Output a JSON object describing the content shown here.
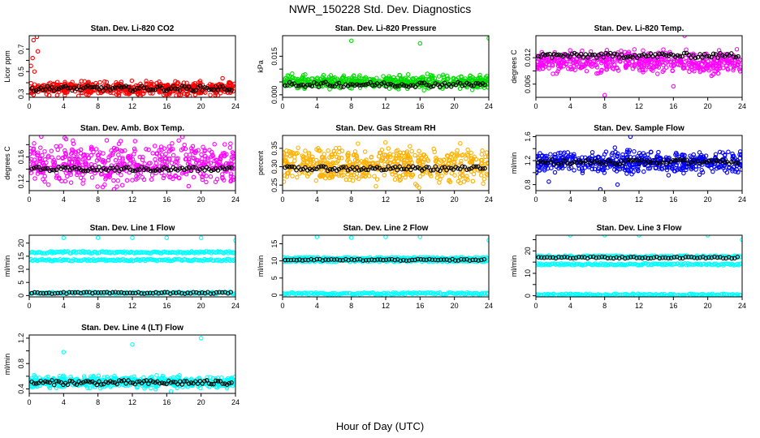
{
  "title": "NWR_150228  Std. Dev. Diagnostics",
  "xlabel": "Hour of Day (UTC)",
  "colors": {
    "red": "#ff0000",
    "green": "#00dd00",
    "magenta": "#ff00ff",
    "orange": "#ffb000",
    "blue": "#0000ff",
    "cyan": "#00ffff",
    "black": "#000000"
  },
  "chart_data": [
    {
      "type": "scatter",
      "title": "Stan. Dev. Li-820 CO2",
      "ylabel": "Licor ppm",
      "xlim": [
        0,
        24
      ],
      "ylim": [
        0.27,
        0.82
      ],
      "xticks": [
        0,
        4,
        8,
        12,
        16,
        20,
        24
      ],
      "yticks": [
        0.3,
        0.4,
        0.5,
        0.6,
        0.7
      ],
      "ytick_labels": [
        "0.3",
        "",
        "0.5",
        "",
        "0.7"
      ],
      "color": "red",
      "band": [
        0.28,
        0.42
      ],
      "black_mean": 0.35,
      "outliers": [
        [
          0.9,
          0.81
        ],
        [
          0.5,
          0.78
        ],
        [
          1.0,
          0.68
        ],
        [
          0.4,
          0.62
        ],
        [
          0.2,
          0.55
        ],
        [
          0.6,
          0.5
        ],
        [
          22.5,
          0.44
        ]
      ]
    },
    {
      "type": "scatter",
      "title": "Stan. Dev. Li-820 Pressure",
      "ylabel": "kPa",
      "xlim": [
        0,
        24
      ],
      "ylim": [
        -0.001,
        0.023
      ],
      "xticks": [
        0,
        4,
        8,
        12,
        16,
        20,
        24
      ],
      "yticks": [
        0,
        0.005,
        0.01,
        0.015
      ],
      "ytick_labels": [
        "0.000",
        "",
        "",
        "0.015"
      ],
      "color": "green",
      "band": [
        0.002,
        0.008
      ],
      "black_mean": 0.004,
      "outliers": [
        [
          8.0,
          0.021
        ],
        [
          16.0,
          0.02
        ],
        [
          24.0,
          0.022
        ]
      ]
    },
    {
      "type": "scatter",
      "title": "Stan. Dev. Li-820 Temp.",
      "ylabel": "degrees C",
      "xlim": [
        0,
        24
      ],
      "ylim": [
        0.003,
        0.017
      ],
      "xticks": [
        0,
        4,
        8,
        12,
        16,
        20,
        24
      ],
      "yticks": [
        0.006,
        0.009,
        0.012
      ],
      "ytick_labels": [
        "0.006",
        "",
        "0.012"
      ],
      "color": "magenta",
      "band": [
        0.008,
        0.014
      ],
      "black_mean": 0.0125,
      "outliers": [
        [
          8.0,
          0.0035
        ],
        [
          17.3,
          0.017
        ],
        [
          16.0,
          0.0055
        ]
      ]
    },
    {
      "type": "scatter",
      "title": "Stan. Dev. Amb. Box Temp.",
      "ylabel": "degrees C",
      "xlim": [
        0,
        24
      ],
      "ylim": [
        0.105,
        0.195
      ],
      "xticks": [
        0,
        4,
        8,
        12,
        16,
        20,
        24
      ],
      "yticks": [
        0.12,
        0.14,
        0.16,
        0.18
      ],
      "ytick_labels": [
        "0.12",
        "",
        "0.16",
        ""
      ],
      "color": "magenta",
      "band": [
        0.11,
        0.19
      ],
      "black_mean": 0.14,
      "outliers": []
    },
    {
      "type": "scatter",
      "title": "Stan. Dev. Gas Stream RH",
      "ylabel": "percent",
      "xlim": [
        0,
        24
      ],
      "ylim": [
        0.235,
        0.385
      ],
      "xticks": [
        0,
        4,
        8,
        12,
        16,
        20,
        24
      ],
      "yticks": [
        0.25,
        0.3,
        0.35
      ],
      "ytick_labels": [
        "0.25",
        "0.30",
        "0.35"
      ],
      "color": "orange",
      "band": [
        0.245,
        0.365
      ],
      "black_mean": 0.295,
      "outliers": []
    },
    {
      "type": "scatter",
      "title": "Stan. Dev. Sample Flow",
      "ylabel": "ml/min",
      "xlim": [
        0,
        24
      ],
      "ylim": [
        0.7,
        1.62
      ],
      "xticks": [
        0,
        4,
        8,
        12,
        16,
        20,
        24
      ],
      "yticks": [
        0.8,
        1.0,
        1.2,
        1.4,
        1.6
      ],
      "ytick_labels": [
        "0.8",
        "",
        "1.2",
        "",
        "1.6"
      ],
      "color": "blue",
      "band": [
        0.95,
        1.4
      ],
      "black_mean": 1.18,
      "outliers": [
        [
          7.5,
          0.72
        ],
        [
          11.0,
          1.6
        ],
        [
          9.5,
          0.8
        ],
        [
          1.5,
          0.85
        ]
      ]
    },
    {
      "type": "scatter",
      "title": "Stan. Dev. Line 1 Flow",
      "ylabel": "ml/min",
      "xlim": [
        0,
        24
      ],
      "ylim": [
        -0.5,
        23
      ],
      "xticks": [
        0,
        4,
        8,
        12,
        16,
        20,
        24
      ],
      "yticks": [
        0,
        5,
        10,
        15,
        20
      ],
      "ytick_labels": [
        "0",
        "5",
        "10",
        "15",
        "20"
      ],
      "color": "cyan",
      "lines": [
        16.5,
        13.5,
        1.0
      ],
      "black_mean": 1.0,
      "outliers": [
        [
          4.0,
          22
        ],
        [
          8.0,
          22
        ],
        [
          12.0,
          22
        ],
        [
          16.0,
          22
        ],
        [
          24.0,
          21
        ],
        [
          20.0,
          22
        ]
      ]
    },
    {
      "type": "scatter",
      "title": "Stan. Dev. Line 2 Flow",
      "ylabel": "ml/min",
      "xlim": [
        0,
        24
      ],
      "ylim": [
        -0.5,
        17.5
      ],
      "xticks": [
        0,
        4,
        8,
        12,
        16,
        20,
        24
      ],
      "yticks": [
        0,
        5,
        10,
        15
      ],
      "ytick_labels": [
        "0",
        "5",
        "10",
        "15"
      ],
      "color": "cyan",
      "lines": [
        10.8,
        10.0,
        0.5
      ],
      "black_mean": 10.3,
      "outliers": [
        [
          4.0,
          17
        ],
        [
          8.0,
          16.8
        ],
        [
          12.0,
          17
        ],
        [
          16.0,
          17
        ],
        [
          24.0,
          16
        ]
      ]
    },
    {
      "type": "scatter",
      "title": "Stan. Dev. Line 3 Flow",
      "ylabel": "ml/min",
      "xlim": [
        0,
        24
      ],
      "ylim": [
        -0.5,
        27
      ],
      "xticks": [
        0,
        4,
        8,
        12,
        16,
        20,
        24
      ],
      "yticks": [
        0,
        5,
        10,
        15,
        20,
        25
      ],
      "ytick_labels": [
        "0",
        "",
        "10",
        "",
        "20",
        ""
      ],
      "color": "cyan",
      "lines": [
        17.5,
        14.0,
        0.5
      ],
      "black_mean": 17.0,
      "outliers": [
        [
          4.0,
          27
        ],
        [
          8.0,
          27
        ],
        [
          12.0,
          27
        ],
        [
          20.0,
          27
        ],
        [
          24.0,
          25
        ]
      ]
    },
    {
      "type": "scatter",
      "title": "Stan. Dev. Line 4 (LT) Flow",
      "ylabel": "ml/min",
      "xlim": [
        0,
        24
      ],
      "ylim": [
        0.33,
        1.25
      ],
      "xticks": [
        0,
        4,
        8,
        12,
        16,
        20,
        24
      ],
      "yticks": [
        0.4,
        0.6,
        0.8,
        1.0,
        1.2
      ],
      "ytick_labels": [
        "0.4",
        "",
        "0.8",
        "",
        "1.2"
      ],
      "color": "cyan",
      "band": [
        0.4,
        0.62
      ],
      "black_mean": 0.5,
      "outliers": [
        [
          20.0,
          1.2
        ],
        [
          12.0,
          1.1
        ],
        [
          4.0,
          0.98
        ],
        [
          16.5,
          0.36
        ]
      ]
    }
  ]
}
